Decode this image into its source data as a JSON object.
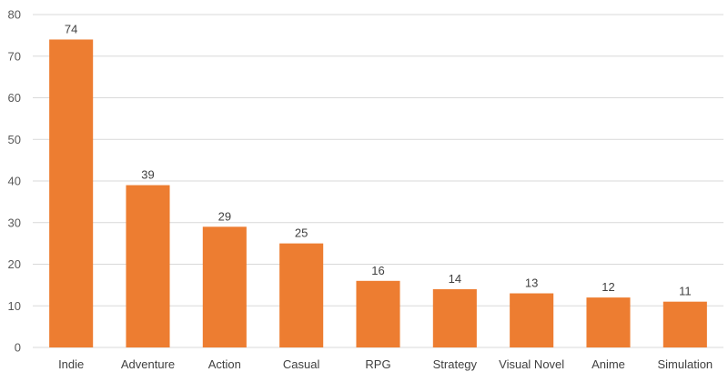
{
  "chart_data": {
    "type": "bar",
    "title": "",
    "xlabel": "",
    "ylabel": "",
    "categories": [
      "Indie",
      "Adventure",
      "Action",
      "Casual",
      "RPG",
      "Strategy",
      "Visual Novel",
      "Anime",
      "Simulation"
    ],
    "values": [
      74,
      39,
      29,
      25,
      16,
      14,
      13,
      12,
      11
    ],
    "ylim": [
      0,
      80
    ],
    "yticks": [
      0,
      10,
      20,
      30,
      40,
      50,
      60,
      70,
      80
    ],
    "grid": true,
    "legend": "none",
    "bar_color": "#ed7d31",
    "data_labels": true
  }
}
